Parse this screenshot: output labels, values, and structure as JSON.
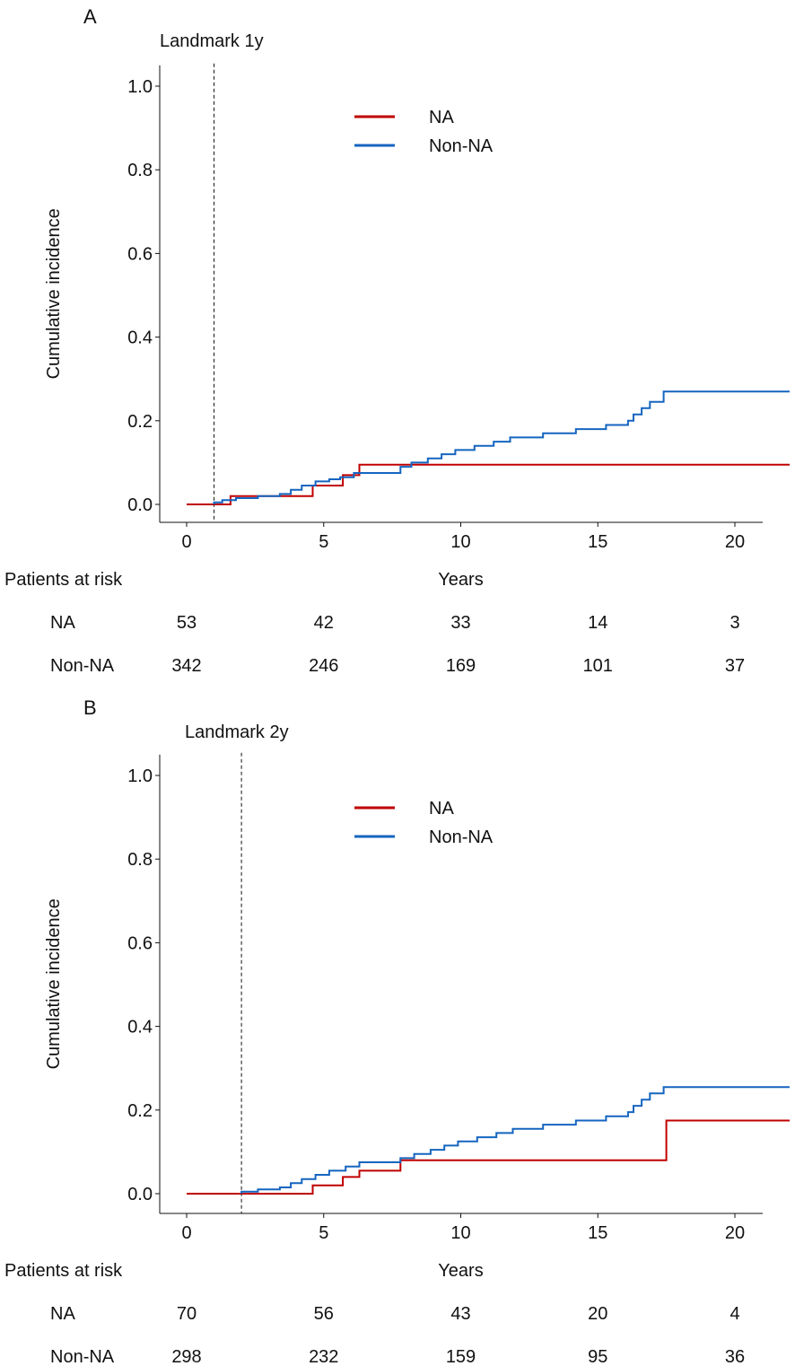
{
  "colors": {
    "na": "#c00000",
    "non_na": "#1565c0",
    "axis": "#111111"
  },
  "chart_data": [
    {
      "panel_label": "A",
      "title": "Landmark 1y",
      "type": "line",
      "step": true,
      "ylabel": "Cumulative incidence",
      "xlabel": "Years",
      "xlim": [
        -1,
        22
      ],
      "ylim": [
        -0.04,
        1.05
      ],
      "xticks": [
        0,
        5,
        10,
        15,
        20
      ],
      "yticks": [
        "0.0",
        "0.2",
        "0.4",
        "0.6",
        "0.8",
        "1.0"
      ],
      "landmark": 1,
      "legend": [
        "NA",
        "Non-NA"
      ],
      "series": [
        {
          "name": "NA",
          "color_key": "na",
          "points": [
            [
              0,
              0
            ],
            [
              1.6,
              0
            ],
            [
              1.6,
              0.02
            ],
            [
              4.6,
              0.02
            ],
            [
              4.6,
              0.045
            ],
            [
              5.7,
              0.045
            ],
            [
              5.7,
              0.07
            ],
            [
              6.3,
              0.07
            ],
            [
              6.3,
              0.095
            ],
            [
              22,
              0.095
            ]
          ]
        },
        {
          "name": "Non-NA",
          "color_key": "non_na",
          "points": [
            [
              1,
              0
            ],
            [
              1,
              0.005
            ],
            [
              1.3,
              0.01
            ],
            [
              1.8,
              0.015
            ],
            [
              2.6,
              0.02
            ],
            [
              3.4,
              0.025
            ],
            [
              3.8,
              0.035
            ],
            [
              4.2,
              0.045
            ],
            [
              4.7,
              0.055
            ],
            [
              5.2,
              0.06
            ],
            [
              5.6,
              0.065
            ],
            [
              6.1,
              0.075
            ],
            [
              7.8,
              0.09
            ],
            [
              8.2,
              0.1
            ],
            [
              8.8,
              0.11
            ],
            [
              9.3,
              0.12
            ],
            [
              9.8,
              0.13
            ],
            [
              10.5,
              0.14
            ],
            [
              11.2,
              0.15
            ],
            [
              11.8,
              0.16
            ],
            [
              13,
              0.17
            ],
            [
              14.2,
              0.18
            ],
            [
              15.3,
              0.19
            ],
            [
              16.1,
              0.2
            ],
            [
              16.3,
              0.215
            ],
            [
              16.6,
              0.23
            ],
            [
              16.9,
              0.245
            ],
            [
              17.4,
              0.27
            ],
            [
              22,
              0.27
            ]
          ]
        }
      ],
      "risk_table": {
        "header": "Patients at risk",
        "times": [
          0,
          5,
          10,
          15,
          20
        ],
        "rows": [
          {
            "label": "NA",
            "values": [
              "53",
              "42",
              "33",
              "14",
              "3"
            ]
          },
          {
            "label": "Non-NA",
            "values": [
              "342",
              "246",
              "169",
              "101",
              "37"
            ]
          }
        ]
      }
    },
    {
      "panel_label": "B",
      "title": "Landmark 2y",
      "type": "line",
      "step": true,
      "ylabel": "Cumulative incidence",
      "xlabel": "Years",
      "xlim": [
        -1,
        22
      ],
      "ylim": [
        -0.04,
        1.05
      ],
      "xticks": [
        0,
        5,
        10,
        15,
        20
      ],
      "yticks": [
        "0.0",
        "0.2",
        "0.4",
        "0.6",
        "0.8",
        "1.0"
      ],
      "landmark": 2,
      "legend": [
        "NA",
        "Non-NA"
      ],
      "series": [
        {
          "name": "NA",
          "color_key": "na",
          "points": [
            [
              0,
              0
            ],
            [
              4.6,
              0
            ],
            [
              4.6,
              0.02
            ],
            [
              5.7,
              0.02
            ],
            [
              5.7,
              0.04
            ],
            [
              6.3,
              0.04
            ],
            [
              6.3,
              0.055
            ],
            [
              7.8,
              0.055
            ],
            [
              7.8,
              0.08
            ],
            [
              17.5,
              0.08
            ],
            [
              17.5,
              0.175
            ],
            [
              22,
              0.175
            ]
          ]
        },
        {
          "name": "Non-NA",
          "color_key": "non_na",
          "points": [
            [
              2,
              0
            ],
            [
              2,
              0.005
            ],
            [
              2.6,
              0.01
            ],
            [
              3.4,
              0.015
            ],
            [
              3.8,
              0.025
            ],
            [
              4.2,
              0.035
            ],
            [
              4.7,
              0.045
            ],
            [
              5.2,
              0.055
            ],
            [
              5.8,
              0.065
            ],
            [
              6.3,
              0.075
            ],
            [
              7.8,
              0.085
            ],
            [
              8.3,
              0.095
            ],
            [
              8.9,
              0.105
            ],
            [
              9.4,
              0.115
            ],
            [
              9.9,
              0.125
            ],
            [
              10.6,
              0.135
            ],
            [
              11.3,
              0.145
            ],
            [
              11.9,
              0.155
            ],
            [
              13,
              0.165
            ],
            [
              14.2,
              0.175
            ],
            [
              15.3,
              0.185
            ],
            [
              16.1,
              0.195
            ],
            [
              16.3,
              0.21
            ],
            [
              16.6,
              0.225
            ],
            [
              16.9,
              0.24
            ],
            [
              17.4,
              0.255
            ],
            [
              22,
              0.255
            ]
          ]
        }
      ],
      "risk_table": {
        "header": "Patients at risk",
        "times": [
          0,
          5,
          10,
          15,
          20
        ],
        "rows": [
          {
            "label": "NA",
            "values": [
              "70",
              "56",
              "43",
              "20",
              "4"
            ]
          },
          {
            "label": "Non-NA",
            "values": [
              "298",
              "232",
              "159",
              "95",
              "36"
            ]
          }
        ]
      }
    }
  ]
}
